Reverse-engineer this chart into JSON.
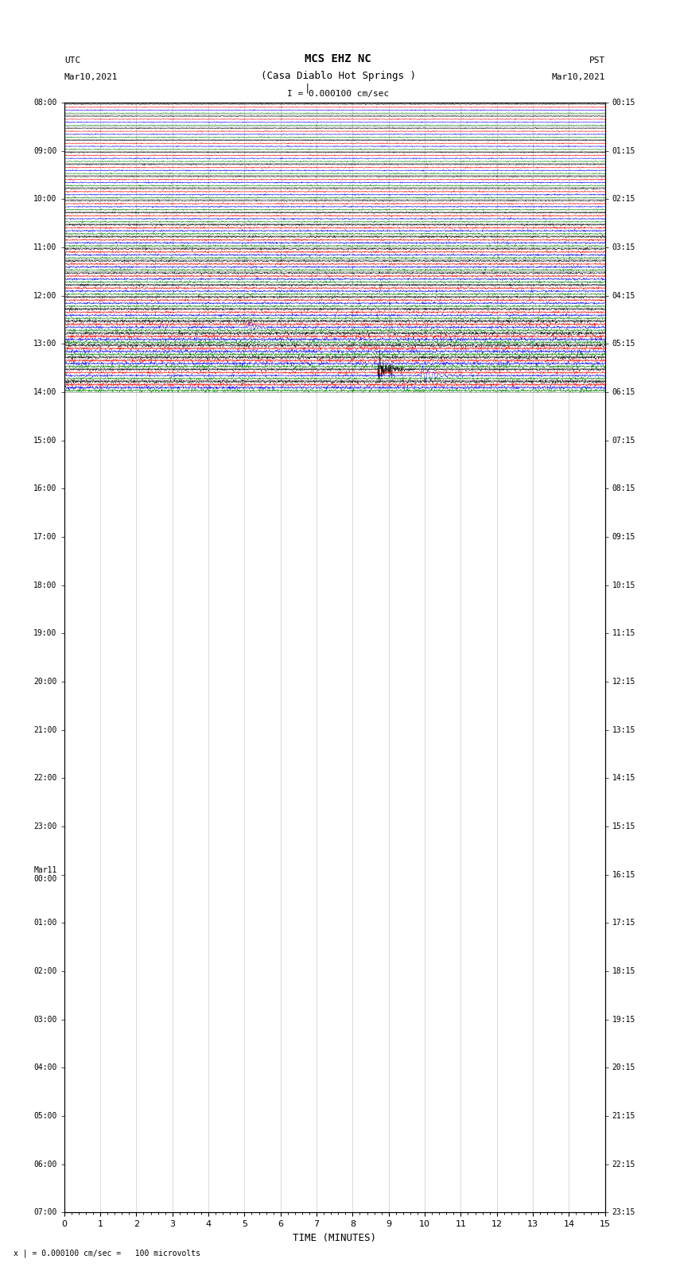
{
  "title_line1": "MCS EHZ NC",
  "title_line2": "(Casa Diablo Hot Springs )",
  "scale_text": "I = 0.000100 cm/sec",
  "footer_text": "x | = 0.000100 cm/sec =   100 microvolts",
  "label_left_line1": "UTC",
  "label_left_line2": "Mar10,2021",
  "label_right_line1": "PST",
  "label_right_line2": "Mar10,2021",
  "xlabel": "TIME (MINUTES)",
  "utc_labels": {
    "0": "08:00",
    "4": "09:00",
    "8": "10:00",
    "12": "11:00",
    "16": "12:00",
    "20": "13:00",
    "24": "14:00",
    "28": "15:00",
    "32": "16:00",
    "36": "17:00",
    "40": "18:00",
    "44": "19:00",
    "48": "20:00",
    "52": "21:00",
    "56": "22:00",
    "60": "23:00",
    "64": "Mar11\n00:00",
    "68": "01:00",
    "72": "02:00",
    "76": "03:00",
    "80": "04:00",
    "84": "05:00",
    "88": "06:00",
    "92": "07:00"
  },
  "pst_labels": {
    "0": "00:15",
    "4": "01:15",
    "8": "02:15",
    "12": "03:15",
    "16": "04:15",
    "20": "05:15",
    "24": "06:15",
    "28": "07:15",
    "32": "08:15",
    "36": "09:15",
    "40": "10:15",
    "44": "11:15",
    "48": "12:15",
    "52": "13:15",
    "56": "14:15",
    "60": "15:15",
    "64": "16:15",
    "68": "17:15",
    "72": "18:15",
    "76": "19:15",
    "80": "20:15",
    "84": "21:15",
    "88": "22:15",
    "92": "23:15"
  },
  "colors": [
    "black",
    "red",
    "blue",
    "green"
  ],
  "n_trace_groups": 24,
  "n_traces_per_group": 4,
  "x_min": 0,
  "x_max": 15,
  "bg_color": "white",
  "event_02utc_group": 18,
  "event_06utc_group": 22,
  "event_21utc_group": 13
}
